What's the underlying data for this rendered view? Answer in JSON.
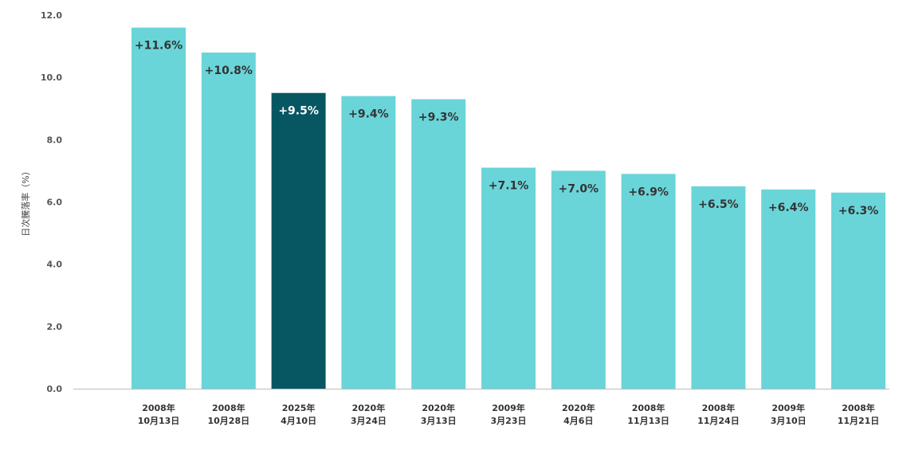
{
  "chart_data": {
    "type": "bar",
    "ylabel": "日次騰落率（%）",
    "ylim": [
      0,
      12
    ],
    "yticks": [
      "0.0",
      "2.0",
      "4.0",
      "6.0",
      "8.0",
      "10.0",
      "12.0"
    ],
    "categories": [
      [
        "2008年",
        "10月13日"
      ],
      [
        "2008年",
        "10月28日"
      ],
      [
        "2025年",
        "4月10日"
      ],
      [
        "2020年",
        "3月24日"
      ],
      [
        "2020年",
        "3月13日"
      ],
      [
        "2009年",
        "3月23日"
      ],
      [
        "2020年",
        "4月6日"
      ],
      [
        "2008年",
        "11月13日"
      ],
      [
        "2008年",
        "11月24日"
      ],
      [
        "2009年",
        "3月10日"
      ],
      [
        "2008年",
        "11月21日"
      ]
    ],
    "values": [
      11.6,
      10.8,
      9.5,
      9.4,
      9.3,
      7.1,
      7.0,
      6.9,
      6.5,
      6.4,
      6.3
    ],
    "data_labels": [
      "+11.6%",
      "+10.8%",
      "+9.5%",
      "+9.4%",
      "+9.3%",
      "+7.1%",
      "+7.0%",
      "+6.9%",
      "+6.5%",
      "+6.4%",
      "+6.3%"
    ],
    "highlight_index": 2,
    "grid": false,
    "colors": {
      "bar": "#6ad5d9",
      "highlight": "#075763",
      "label_dark": "#333333",
      "label_light": "#ffffff",
      "axis": "#bbbbbb"
    }
  }
}
